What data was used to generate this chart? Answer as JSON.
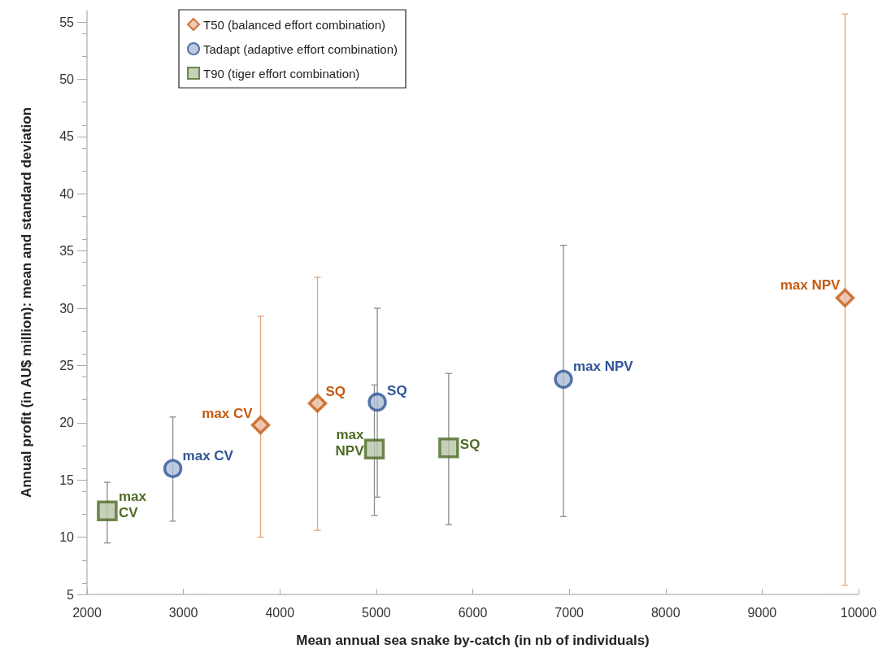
{
  "chart_data": {
    "type": "scatter",
    "xlabel": "Mean annual sea snake by-catch (in nb of individuals)",
    "ylabel": "Annual profit (in AU$ million): mean and standard deviation",
    "xlim": [
      2000,
      10000
    ],
    "xticks": [
      2000,
      3000,
      4000,
      5000,
      6000,
      7000,
      8000,
      9000,
      10000
    ],
    "ylim": [
      5,
      56
    ],
    "yticks": [
      5,
      10,
      15,
      20,
      25,
      30,
      35,
      40,
      45,
      50,
      55
    ],
    "grid": false,
    "legend": "top left",
    "series": [
      {
        "name": "T50 (balanced effort combination)",
        "color": "#c55a11",
        "marker": "diamond",
        "x": [
          3800,
          4390,
          9860
        ],
        "values": [
          19.8,
          21.7,
          30.9
        ],
        "errors": [
          [
            10.0,
            29.3
          ],
          [
            10.6,
            32.7
          ],
          [
            5.8,
            55.7
          ]
        ]
      },
      {
        "name": "Tadapt (adaptive effort combination)",
        "color": "#2f5597",
        "marker": "circle",
        "x": [
          2890,
          5010,
          6940
        ],
        "values": [
          16.0,
          21.8,
          23.8
        ],
        "errors": [
          [
            11.4,
            20.5
          ],
          [
            13.5,
            30.0
          ],
          [
            11.8,
            35.5
          ]
        ]
      },
      {
        "name": "T90 (tiger effort combination)",
        "color": "#4e6b25",
        "marker": "square",
        "x": [
          2210,
          4980,
          5750
        ],
        "values": [
          12.3,
          17.7,
          17.8
        ],
        "errors": [
          [
            9.5,
            14.8
          ],
          [
            11.9,
            23.3
          ],
          [
            11.1,
            24.3
          ]
        ]
      }
    ],
    "annotations": [
      {
        "text": "max CV",
        "x": 3800,
        "y": 19.8
      },
      {
        "text": "SQ",
        "x": 4390,
        "y": 21.7
      },
      {
        "text": "max NPV",
        "x": 9860,
        "y": 30.9
      },
      {
        "text": "max CV",
        "x": 2890,
        "y": 16.0
      },
      {
        "text": "SQ",
        "x": 5010,
        "y": 21.8
      },
      {
        "text": "max NPV",
        "x": 6940,
        "y": 23.8
      },
      {
        "text": "max CV",
        "x": 2210,
        "y": 12.3
      },
      {
        "text": "max NPV",
        "x": 4980,
        "y": 17.7
      },
      {
        "text": "SQ",
        "x": 5750,
        "y": 17.8
      }
    ]
  }
}
